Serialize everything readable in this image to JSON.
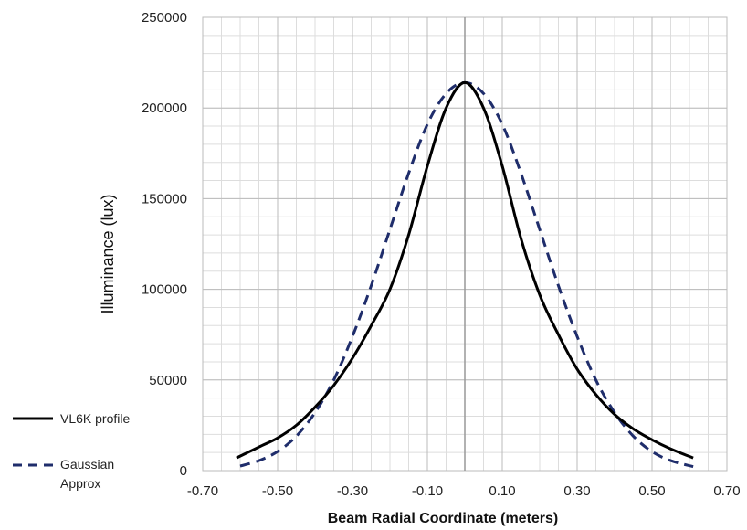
{
  "chart_data": {
    "type": "line",
    "title": "",
    "xlabel": "Beam Radial Coordinate (meters)",
    "ylabel": "Illuminance (lux)",
    "xlim": [
      -0.7,
      0.7
    ],
    "ylim": [
      0,
      250000
    ],
    "x_ticks": [
      "-0.70",
      "-0.50",
      "-0.30",
      "-0.10",
      "0.10",
      "0.30",
      "0.50",
      "0.70"
    ],
    "y_ticks": [
      "0",
      "50000",
      "100000",
      "150000",
      "200000",
      "250000"
    ],
    "grid": true,
    "legend_position": "bottom-left",
    "series": [
      {
        "name": "VL6K profile",
        "style": "solid",
        "color": "#000000",
        "x": [
          -0.61,
          -0.55,
          -0.5,
          -0.45,
          -0.4,
          -0.35,
          -0.3,
          -0.25,
          -0.2,
          -0.15,
          -0.1,
          -0.05,
          0.0,
          0.05,
          0.1,
          0.15,
          0.2,
          0.25,
          0.3,
          0.35,
          0.4,
          0.45,
          0.5,
          0.55,
          0.61
        ],
        "y": [
          7000,
          13000,
          18000,
          25000,
          35000,
          47000,
          62000,
          80000,
          100000,
          130000,
          168000,
          200000,
          214000,
          200000,
          168000,
          128000,
          97000,
          75000,
          56000,
          42000,
          31000,
          23000,
          17000,
          12000,
          7000
        ]
      },
      {
        "name": "Gaussian Approx",
        "style": "dashed",
        "color": "#1f2d6b",
        "x": [
          -0.6,
          -0.55,
          -0.5,
          -0.45,
          -0.4,
          -0.35,
          -0.3,
          -0.25,
          -0.2,
          -0.15,
          -0.1,
          -0.05,
          0.0,
          0.05,
          0.1,
          0.15,
          0.2,
          0.25,
          0.3,
          0.35,
          0.4,
          0.45,
          0.5,
          0.55,
          0.61
        ],
        "y": [
          2500,
          5500,
          10500,
          19000,
          32000,
          50000,
          74000,
          102000,
          133000,
          164000,
          191000,
          208000,
          214000,
          208000,
          191000,
          164000,
          133000,
          102000,
          74000,
          50000,
          32000,
          19000,
          10500,
          5500,
          2200
        ]
      }
    ]
  }
}
